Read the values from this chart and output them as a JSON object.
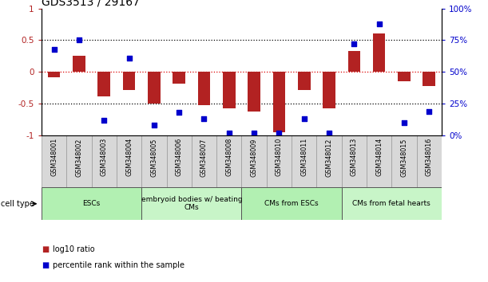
{
  "title": "GDS3513 / 29167",
  "samples": [
    "GSM348001",
    "GSM348002",
    "GSM348003",
    "GSM348004",
    "GSM348005",
    "GSM348006",
    "GSM348007",
    "GSM348008",
    "GSM348009",
    "GSM348010",
    "GSM348011",
    "GSM348012",
    "GSM348013",
    "GSM348014",
    "GSM348015",
    "GSM348016"
  ],
  "log10_ratio": [
    -0.08,
    0.25,
    -0.38,
    -0.28,
    -0.5,
    -0.18,
    -0.52,
    -0.57,
    -0.63,
    -0.95,
    -0.28,
    -0.57,
    0.33,
    0.6,
    -0.15,
    -0.22
  ],
  "percentile_rank": [
    68,
    75,
    12,
    61,
    8,
    18,
    13,
    2,
    2,
    2,
    13,
    2,
    72,
    88,
    10,
    19
  ],
  "bar_color": "#b22222",
  "dot_color": "#0000cc",
  "cell_type_groups": [
    {
      "label": "ESCs",
      "start": 0,
      "end": 3,
      "color": "#b2f0b2"
    },
    {
      "label": "embryoid bodies w/ beating\nCMs",
      "start": 4,
      "end": 7,
      "color": "#c8f5c8"
    },
    {
      "label": "CMs from ESCs",
      "start": 8,
      "end": 11,
      "color": "#b2f0b2"
    },
    {
      "label": "CMs from fetal hearts",
      "start": 12,
      "end": 15,
      "color": "#c8f5c8"
    }
  ],
  "ylim_left": [
    -1.0,
    1.0
  ],
  "ylim_right": [
    0,
    100
  ],
  "yticks_left": [
    -1.0,
    -0.5,
    0.0,
    0.5,
    1.0
  ],
  "ytick_labels_left": [
    "-1",
    "-0.5",
    "0",
    "0.5",
    "1"
  ],
  "yticks_right": [
    0,
    25,
    50,
    75,
    100
  ],
  "ytick_labels_right": [
    "0%",
    "25%",
    "50%",
    "75%",
    "100%"
  ],
  "hline_dotted": [
    -0.5,
    0.5
  ],
  "hline_color_zero": "#dd0000",
  "background_color": "#ffffff",
  "legend_log10_label": "log10 ratio",
  "legend_pct_label": "percentile rank within the sample",
  "cell_type_label": "cell type"
}
